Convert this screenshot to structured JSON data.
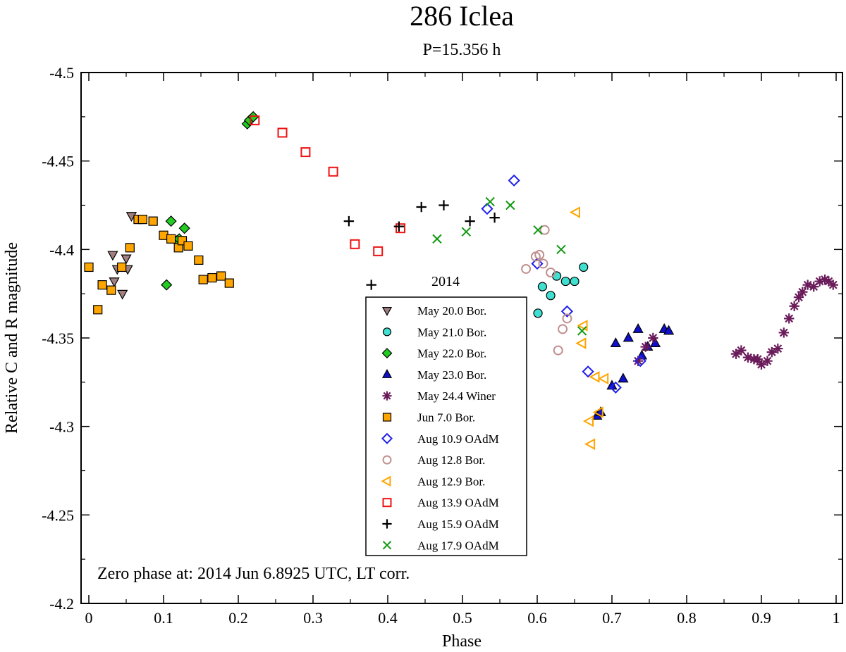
{
  "chart_data": {
    "type": "scatter",
    "title": "286 Iclea",
    "subtitle": "P=15.356 h",
    "xlabel": "Phase",
    "ylabel": "Relative C and R magnitude",
    "xlim": [
      0,
      1
    ],
    "ylim": [
      -4.5,
      -4.2
    ],
    "x_ticks": [
      0,
      0.1,
      0.2,
      0.3,
      0.4,
      0.5,
      0.6,
      0.7,
      0.8,
      0.9,
      1
    ],
    "x_tick_labels": [
      "0",
      "0.1",
      "0.2",
      "0.3",
      "0.4",
      "0.5",
      "0.6",
      "0.7",
      "0.8",
      "0.9",
      "1"
    ],
    "y_ticks": [
      -4.5,
      -4.45,
      -4.4,
      -4.35,
      -4.3,
      -4.25,
      -4.2
    ],
    "y_tick_labels": [
      "-4.5",
      "-4.45",
      "-4.4",
      "-4.35",
      "-4.3",
      "-4.25",
      "-4.2"
    ],
    "legend_title": "2014",
    "annotation": "Zero phase at: 2014 Jun 6.8925 UTC, LT corr.",
    "series": [
      {
        "name": "May 20.0 Bor.",
        "marker": "triangle-down",
        "color": "#a08080",
        "filled": true,
        "points": [
          [
            0.032,
            -4.397
          ],
          [
            0.034,
            -4.382
          ],
          [
            0.038,
            -4.389
          ],
          [
            0.045,
            -4.375
          ],
          [
            0.05,
            -4.395
          ],
          [
            0.052,
            -4.389
          ],
          [
            0.057,
            -4.419
          ]
        ]
      },
      {
        "name": "May 21.0 Bor.",
        "marker": "circle",
        "color": "#40e0d0",
        "filled": true,
        "points": [
          [
            0.601,
            -4.364
          ],
          [
            0.607,
            -4.379
          ],
          [
            0.618,
            -4.374
          ],
          [
            0.626,
            -4.385
          ],
          [
            0.638,
            -4.382
          ],
          [
            0.65,
            -4.382
          ],
          [
            0.662,
            -4.39
          ]
        ]
      },
      {
        "name": "May 22.0 Bor.",
        "marker": "diamond",
        "color": "#22cc22",
        "filled": true,
        "points": [
          [
            0.104,
            -4.38
          ],
          [
            0.11,
            -4.416
          ],
          [
            0.118,
            -4.405
          ],
          [
            0.121,
            -4.406
          ],
          [
            0.128,
            -4.412
          ],
          [
            0.212,
            -4.471
          ],
          [
            0.215,
            -4.473
          ],
          [
            0.22,
            -4.475
          ]
        ]
      },
      {
        "name": "May 23.0 Bor.",
        "marker": "triangle-up",
        "color": "#1010cc",
        "filled": true,
        "points": [
          [
            0.68,
            -4.306
          ],
          [
            0.685,
            -4.308
          ],
          [
            0.7,
            -4.323
          ],
          [
            0.705,
            -4.347
          ],
          [
            0.715,
            -4.327
          ],
          [
            0.722,
            -4.35
          ],
          [
            0.735,
            -4.355
          ],
          [
            0.74,
            -4.34
          ],
          [
            0.748,
            -4.345
          ],
          [
            0.758,
            -4.347
          ],
          [
            0.77,
            -4.355
          ],
          [
            0.776,
            -4.354
          ]
        ]
      },
      {
        "name": "May 24.4 Winer",
        "marker": "asterisk",
        "color": "#6a1b5a",
        "filled": false,
        "points": [
          [
            0.735,
            -4.337
          ],
          [
            0.745,
            -4.345
          ],
          [
            0.755,
            -4.35
          ],
          [
            0.866,
            -4.341
          ],
          [
            0.873,
            -4.343
          ],
          [
            0.882,
            -4.339
          ],
          [
            0.89,
            -4.338
          ],
          [
            0.895,
            -4.338
          ],
          [
            0.9,
            -4.335
          ],
          [
            0.908,
            -4.337
          ],
          [
            0.914,
            -4.342
          ],
          [
            0.922,
            -4.344
          ],
          [
            0.93,
            -4.353
          ],
          [
            0.937,
            -4.361
          ],
          [
            0.944,
            -4.368
          ],
          [
            0.95,
            -4.373
          ],
          [
            0.955,
            -4.376
          ],
          [
            0.962,
            -4.38
          ],
          [
            0.97,
            -4.379
          ],
          [
            0.978,
            -4.382
          ],
          [
            0.985,
            -4.383
          ],
          [
            0.99,
            -4.382
          ],
          [
            0.996,
            -4.38
          ]
        ]
      },
      {
        "name": "Jun 7.0 Bor.",
        "marker": "square",
        "color": "#ffa500",
        "filled": true,
        "points": [
          [
            0.0,
            -4.39
          ],
          [
            0.012,
            -4.366
          ],
          [
            0.018,
            -4.38
          ],
          [
            0.03,
            -4.377
          ],
          [
            0.044,
            -4.39
          ],
          [
            0.055,
            -4.401
          ],
          [
            0.066,
            -4.417
          ],
          [
            0.072,
            -4.417
          ],
          [
            0.086,
            -4.416
          ],
          [
            0.1,
            -4.408
          ],
          [
            0.11,
            -4.406
          ],
          [
            0.12,
            -4.401
          ],
          [
            0.125,
            -4.405
          ],
          [
            0.133,
            -4.402
          ],
          [
            0.147,
            -4.394
          ],
          [
            0.153,
            -4.383
          ],
          [
            0.165,
            -4.384
          ],
          [
            0.177,
            -4.385
          ],
          [
            0.188,
            -4.381
          ]
        ]
      },
      {
        "name": "Aug 10.9 OAdM",
        "marker": "diamond",
        "color": "#2020ee",
        "filled": false,
        "points": [
          [
            0.533,
            -4.423
          ],
          [
            0.569,
            -4.439
          ],
          [
            0.6,
            -4.392
          ],
          [
            0.64,
            -4.365
          ],
          [
            0.668,
            -4.331
          ],
          [
            0.705,
            -4.322
          ],
          [
            0.738,
            -4.337
          ]
        ]
      },
      {
        "name": "Aug 12.8 Bor.",
        "marker": "circle",
        "color": "#c09090",
        "filled": false,
        "points": [
          [
            0.585,
            -4.389
          ],
          [
            0.598,
            -4.396
          ],
          [
            0.603,
            -4.397
          ],
          [
            0.608,
            -4.392
          ],
          [
            0.61,
            -4.411
          ],
          [
            0.618,
            -4.387
          ],
          [
            0.628,
            -4.343
          ],
          [
            0.634,
            -4.355
          ],
          [
            0.64,
            -4.361
          ]
        ]
      },
      {
        "name": "Aug 12.9 Bor.",
        "marker": "triangle-left",
        "color": "#ffa500",
        "filled": false,
        "points": [
          [
            0.652,
            -4.421
          ],
          [
            0.66,
            -4.347
          ],
          [
            0.662,
            -4.357
          ],
          [
            0.67,
            -4.303
          ],
          [
            0.672,
            -4.29
          ],
          [
            0.678,
            -4.328
          ],
          [
            0.683,
            -4.308
          ],
          [
            0.69,
            -4.327
          ]
        ]
      },
      {
        "name": "Aug 13.9 OAdM",
        "marker": "square",
        "color": "#ee1111",
        "filled": false,
        "points": [
          [
            0.222,
            -4.473
          ],
          [
            0.259,
            -4.466
          ],
          [
            0.29,
            -4.455
          ],
          [
            0.327,
            -4.444
          ],
          [
            0.356,
            -4.403
          ],
          [
            0.387,
            -4.399
          ],
          [
            0.417,
            -4.412
          ]
        ]
      },
      {
        "name": "Aug 15.9 OAdM",
        "marker": "plus",
        "color": "#000000",
        "filled": false,
        "points": [
          [
            0.348,
            -4.416
          ],
          [
            0.378,
            -4.38
          ],
          [
            0.415,
            -4.413
          ],
          [
            0.445,
            -4.424
          ],
          [
            0.475,
            -4.425
          ],
          [
            0.51,
            -4.416
          ],
          [
            0.543,
            -4.418
          ]
        ]
      },
      {
        "name": "Aug 17.9 OAdM",
        "marker": "cross",
        "color": "#119911",
        "filled": false,
        "points": [
          [
            0.466,
            -4.406
          ],
          [
            0.505,
            -4.41
          ],
          [
            0.537,
            -4.427
          ],
          [
            0.564,
            -4.425
          ],
          [
            0.601,
            -4.411
          ],
          [
            0.632,
            -4.4
          ],
          [
            0.66,
            -4.354
          ]
        ]
      }
    ]
  }
}
